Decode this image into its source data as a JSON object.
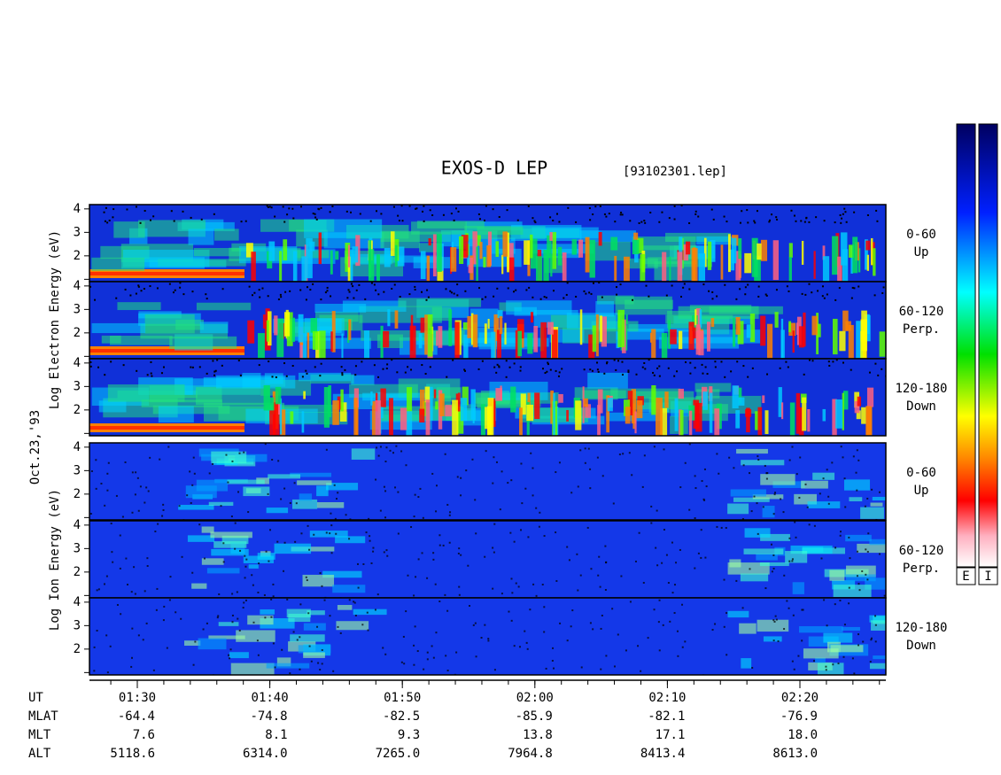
{
  "title": "EXOS-D LEP",
  "file": "[93102301.lep]",
  "date": "Oct.23,'93",
  "electron_axis_label": "Log Electron Energy (eV)",
  "ion_axis_label": "Log Ion Energy (eV)",
  "panel_ticks": [
    "2",
    "3",
    "4"
  ],
  "pitch_labels": [
    [
      "0-60",
      "Up"
    ],
    [
      "60-120",
      "Perp."
    ],
    [
      "120-180",
      "Down"
    ]
  ],
  "time_table": {
    "row_labels": [
      "UT",
      "MLAT",
      "MLT",
      "ALT"
    ],
    "columns": [
      [
        "01:30",
        "-64.4",
        "7.6",
        "5118.6"
      ],
      [
        "01:40",
        "-74.8",
        "8.1",
        "6314.0"
      ],
      [
        "01:50",
        "-82.5",
        "9.3",
        "7265.0"
      ],
      [
        "02:00",
        "-85.9",
        "13.8",
        "7964.8"
      ],
      [
        "02:10",
        "-82.1",
        "17.1",
        "8413.4"
      ],
      [
        "02:20",
        "-76.9",
        "18.0",
        "8613.0"
      ]
    ]
  },
  "colorbars": [
    "E",
    "I"
  ]
}
